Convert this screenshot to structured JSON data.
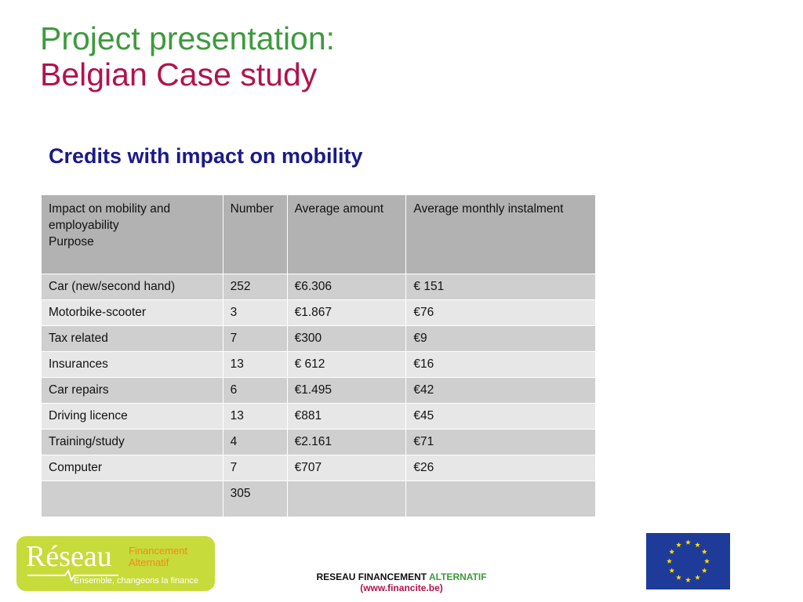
{
  "title": {
    "line1": "Project presentation:",
    "line2": "Belgian Case study"
  },
  "subtitle": "Credits with impact on mobility",
  "table": {
    "header": [
      "Impact on mobility and employability\nPurpose",
      "Number",
      "Average amount",
      "Average monthly instalment"
    ],
    "header_lines": [
      "Impact on mobility and",
      "employability",
      "Purpose"
    ],
    "rows": [
      [
        "Car (new/second hand)",
        "252",
        "€6.306",
        "€ 151"
      ],
      [
        "Motorbike-scooter",
        "3",
        "€1.867",
        "€76"
      ],
      [
        "Tax related",
        "7",
        "€300",
        "€9"
      ],
      [
        "Insurances",
        "13",
        "€ 612",
        "€16"
      ],
      [
        "Car repairs",
        "6",
        "€1.495",
        "€42"
      ],
      [
        "Driving licence",
        "13",
        "€881",
        "€45"
      ],
      [
        "Training/study",
        "4",
        "€2.161",
        "€71"
      ],
      [
        "Computer",
        "7",
        "€707",
        "€26"
      ]
    ],
    "total": [
      "",
      "305",
      "",
      ""
    ]
  },
  "logo": {
    "reseau": "Réseau",
    "financement": "Financement",
    "alternatif": "Alternatif",
    "tagline": "Ensemble, changeons la finance"
  },
  "footer": {
    "part1": "RESEAU FINANCEMENT ",
    "part2": "ALTERNATIF",
    "url": "(www.financite.be)"
  },
  "colors": {
    "green": "#3d9a3d",
    "crimson": "#b3124a",
    "navy": "#1a1a8c",
    "eu_blue": "#1f3b99",
    "eu_star": "#ffdd00"
  },
  "icons": [
    "eu-flag-icon",
    "reseau-logo"
  ]
}
